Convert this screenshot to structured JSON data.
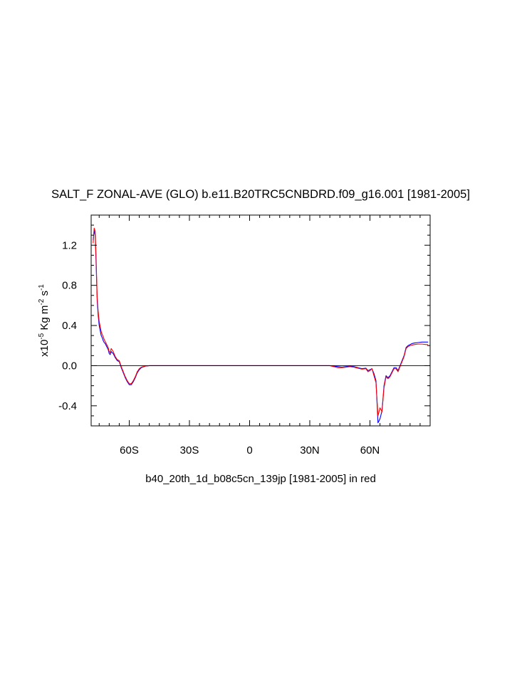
{
  "chart_data": {
    "type": "line",
    "title": "SALT_F ZONAL-AVE (GLO) b.e11.B20TRC5CNBDRD.f09_g16.001 [1981-2005]",
    "ylabel": {
      "prefix": "x10",
      "exponent": "-5",
      "unit_main": " Kg m",
      "unit_exp1": "-2",
      "unit_mid": " s",
      "unit_exp2": "-1"
    },
    "xlabel": "b40_20th_1d_b08c5cn_139jp [1981-2005] in red",
    "xlim": [
      -79,
      90
    ],
    "ylim": [
      -0.6,
      1.5
    ],
    "x_ticks": [
      {
        "value": -60,
        "label": "60S"
      },
      {
        "value": -30,
        "label": "30S"
      },
      {
        "value": 0,
        "label": "0"
      },
      {
        "value": 30,
        "label": "30N"
      },
      {
        "value": 60,
        "label": "60N"
      }
    ],
    "x_minor_step": 5,
    "y_ticks": [
      {
        "value": -0.4,
        "label": "-0.4"
      },
      {
        "value": 0.0,
        "label": "0.0"
      },
      {
        "value": 0.4,
        "label": "0.4"
      },
      {
        "value": 0.8,
        "label": "0.8"
      },
      {
        "value": 1.2,
        "label": "1.2"
      }
    ],
    "y_minor_step": 0.1,
    "reference_line": 0,
    "series": [
      {
        "color": "#0000ff",
        "x": [
          -78,
          -77.5,
          -77,
          -76.5,
          -76,
          -75.5,
          -75,
          -74,
          -73.5,
          -73,
          -72.5,
          -72,
          -71.5,
          -71,
          -70.5,
          -70,
          -69.5,
          -69,
          -68,
          -67,
          -66,
          -65,
          -64,
          -63,
          -62,
          -61,
          -60,
          -59,
          -58,
          -57,
          -56,
          -55,
          -54,
          -52,
          -50,
          0,
          40,
          42,
          44,
          46,
          48,
          50,
          52,
          54,
          56,
          58,
          59,
          60,
          61,
          62,
          63,
          64,
          65,
          66,
          67,
          68,
          69,
          70,
          71,
          72,
          73,
          74,
          75,
          76,
          77,
          78,
          79,
          80,
          81,
          82,
          84,
          86,
          88,
          89
        ],
        "y": [
          1.25,
          1.35,
          1.3,
          1.0,
          0.65,
          0.5,
          0.4,
          0.3,
          0.28,
          0.25,
          0.23,
          0.22,
          0.2,
          0.18,
          0.16,
          0.12,
          0.11,
          0.14,
          0.12,
          0.08,
          0.05,
          0.04,
          -0.02,
          -0.07,
          -0.12,
          -0.16,
          -0.19,
          -0.19,
          -0.16,
          -0.12,
          -0.07,
          -0.04,
          -0.02,
          -0.005,
          0.0,
          0.0,
          0.0,
          -0.005,
          -0.01,
          -0.015,
          -0.01,
          -0.005,
          -0.01,
          -0.02,
          -0.03,
          -0.025,
          -0.05,
          -0.04,
          -0.03,
          -0.08,
          -0.15,
          -0.57,
          -0.53,
          -0.45,
          -0.2,
          -0.1,
          -0.12,
          -0.1,
          -0.06,
          -0.02,
          -0.02,
          -0.05,
          0.0,
          0.05,
          0.1,
          0.18,
          0.2,
          0.21,
          0.22,
          0.225,
          0.23,
          0.235,
          0.235,
          0.235
        ]
      },
      {
        "color": "#ff0000",
        "x": [
          -78,
          -77.5,
          -77,
          -76.5,
          -76,
          -75.5,
          -75,
          -74,
          -73.5,
          -73,
          -72.5,
          -72,
          -71.5,
          -71,
          -70.5,
          -70,
          -69.5,
          -69,
          -68,
          -67,
          -66,
          -65,
          -64,
          -63,
          -62,
          -61,
          -60,
          -59,
          -58,
          -57,
          -56,
          -55,
          -54,
          -52,
          -50,
          0,
          40,
          42,
          44,
          46,
          48,
          50,
          52,
          54,
          56,
          58,
          59,
          60,
          61,
          62,
          63,
          64,
          65,
          66,
          67,
          68,
          69,
          70,
          71,
          72,
          73,
          74,
          75,
          76,
          77,
          78,
          79,
          80,
          81,
          82,
          84,
          86,
          88,
          89
        ],
        "y": [
          1.22,
          1.37,
          1.34,
          1.05,
          0.68,
          0.54,
          0.44,
          0.34,
          0.31,
          0.29,
          0.26,
          0.24,
          0.22,
          0.2,
          0.18,
          0.14,
          0.13,
          0.17,
          0.14,
          0.09,
          0.06,
          0.05,
          -0.01,
          -0.06,
          -0.11,
          -0.15,
          -0.18,
          -0.18,
          -0.15,
          -0.11,
          -0.06,
          -0.03,
          -0.015,
          -0.004,
          0.0,
          0.0,
          0.0,
          -0.01,
          -0.02,
          -0.02,
          -0.015,
          -0.01,
          -0.015,
          -0.025,
          -0.035,
          -0.03,
          -0.06,
          -0.05,
          -0.03,
          -0.1,
          -0.17,
          -0.5,
          -0.42,
          -0.46,
          -0.22,
          -0.11,
          -0.13,
          -0.11,
          -0.07,
          -0.03,
          -0.03,
          -0.06,
          -0.01,
          0.04,
          0.09,
          0.17,
          0.19,
          0.2,
          0.205,
          0.21,
          0.215,
          0.215,
          0.21,
          0.21
        ]
      }
    ]
  }
}
